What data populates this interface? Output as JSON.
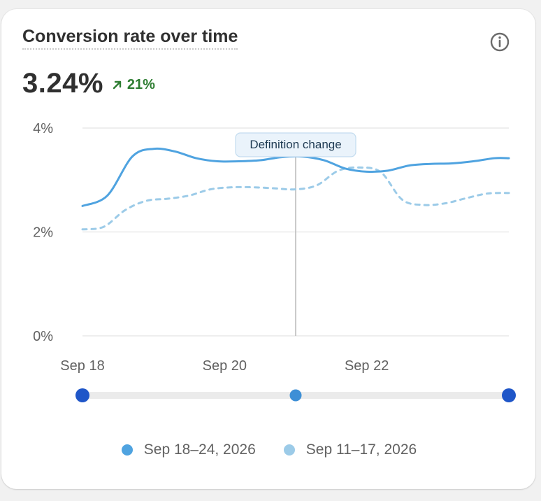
{
  "card": {
    "title": "Conversion rate over time",
    "value": "3.24%",
    "delta": "21%",
    "info_icon": "info-circle-icon",
    "delta_icon": "arrow-up-right-icon"
  },
  "colors": {
    "current": "#4fa3e0",
    "previous": "#9ccbe8",
    "positive": "#2e7d32",
    "marker": "#bdbdbd",
    "handle_end": "#1f56c8",
    "handle_mid": "#3d8fd6"
  },
  "chart_data": {
    "type": "line",
    "title": "Conversion rate over time",
    "xlabel": "",
    "ylabel": "",
    "ylim": [
      0,
      4
    ],
    "y_ticks": [
      "0%",
      "2%",
      "4%"
    ],
    "x_ticks": [
      "Sep 18",
      "Sep 20",
      "Sep 22"
    ],
    "grid": true,
    "legend_position": "bottom",
    "annotation": "Definition change",
    "annotation_x": 21,
    "series": [
      {
        "name": "Sep 18–24, 2026",
        "style": "solid",
        "x": [
          18,
          18.35,
          18.7,
          19.0,
          19.3,
          19.6,
          19.9,
          20.2,
          20.5,
          20.8,
          21.1,
          21.4,
          21.7,
          22.0,
          22.3,
          22.6,
          22.9,
          23.2,
          23.5,
          23.8,
          24.0
        ],
        "values": [
          2.5,
          2.7,
          3.45,
          3.6,
          3.55,
          3.42,
          3.36,
          3.36,
          3.38,
          3.44,
          3.45,
          3.38,
          3.22,
          3.16,
          3.18,
          3.28,
          3.31,
          3.32,
          3.36,
          3.42,
          3.42
        ]
      },
      {
        "name": "Sep 11–17, 2026",
        "style": "dashed",
        "x": [
          18,
          18.3,
          18.6,
          18.9,
          19.2,
          19.5,
          19.8,
          20.1,
          20.4,
          20.7,
          21.0,
          21.3,
          21.6,
          21.9,
          22.2,
          22.5,
          22.8,
          23.1,
          23.4,
          23.7,
          24.0
        ],
        "values": [
          2.05,
          2.1,
          2.42,
          2.6,
          2.64,
          2.7,
          2.82,
          2.86,
          2.86,
          2.84,
          2.82,
          2.9,
          3.18,
          3.24,
          3.15,
          2.62,
          2.52,
          2.55,
          2.65,
          2.74,
          2.75
        ]
      }
    ],
    "range_slider": {
      "min": "Sep 18",
      "max": "Sep 24",
      "marker": "Sep 21"
    }
  },
  "legend": [
    {
      "label": "Sep 18–24, 2026"
    },
    {
      "label": "Sep 11–17, 2026"
    }
  ]
}
